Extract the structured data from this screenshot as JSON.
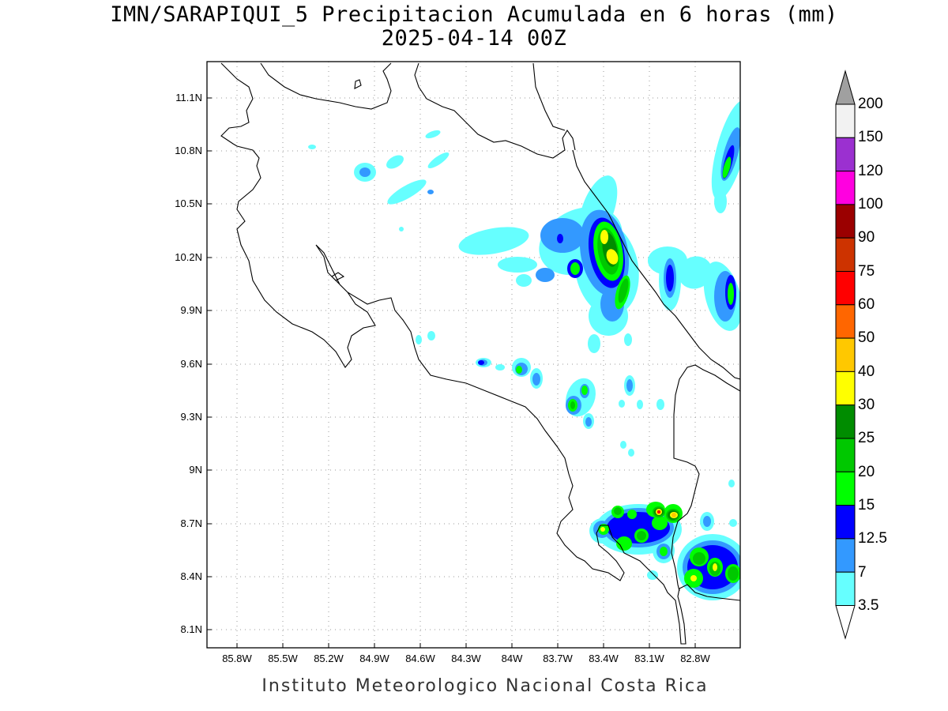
{
  "title": {
    "line1": "IMN/SARAPIQUI_5 Precipitacion Acumulada en 6 horas (mm)",
    "line2": "2025-04-14 00Z"
  },
  "footer": "Instituto Meteorologico Nacional Costa Rica",
  "axes": {
    "y_ticks": [
      "11.1N",
      "10.8N",
      "10.5N",
      "10.2N",
      "9.9N",
      "9.6N",
      "9.3N",
      "9N",
      "8.7N",
      "8.4N",
      "8.1N"
    ],
    "x_ticks": [
      "85.8W",
      "85.5W",
      "85.2W",
      "84.9W",
      "84.6W",
      "84.3W",
      "84W",
      "83.7W",
      "83.4W",
      "83.1W",
      "82.8W"
    ],
    "grid": "dotted"
  },
  "colorbar": {
    "labels": [
      "200",
      "150",
      "120",
      "100",
      "90",
      "75",
      "60",
      "50",
      "40",
      "30",
      "25",
      "20",
      "15",
      "12.5",
      "7",
      "3.5"
    ],
    "colors": [
      "#a0a0a0",
      "#f2f2f2",
      "#9b30d0",
      "#ff00e0",
      "#9b0000",
      "#cd3300",
      "#ff0000",
      "#ff6600",
      "#ffc800",
      "#ffff00",
      "#008c00",
      "#00c800",
      "#00ff00",
      "#0000ff",
      "#3399ff",
      "#66ffff"
    ]
  }
}
